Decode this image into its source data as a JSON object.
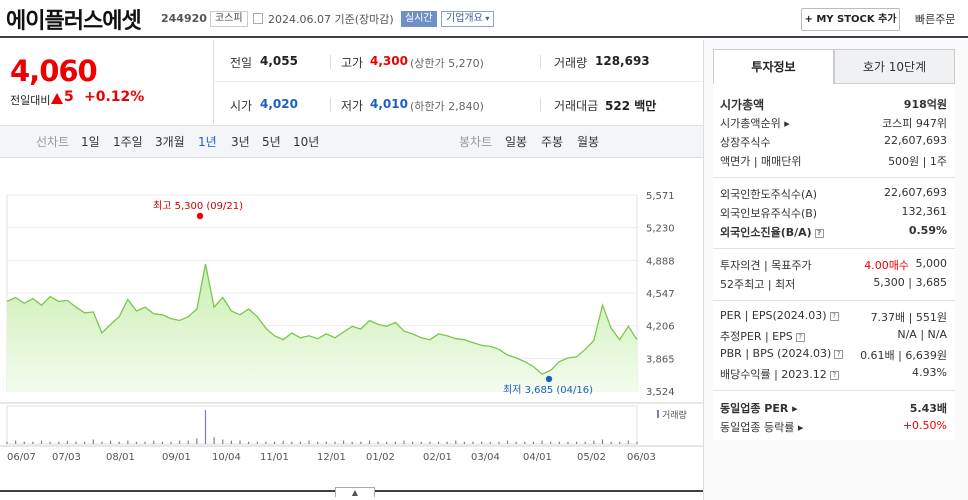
{
  "header": {
    "name": "에이플러스에셋",
    "code": "244920",
    "market": "코스피",
    "date": "2024.06.07",
    "basis": "기준(장마감)",
    "realtime": "실시간",
    "corp_info": "기업개요",
    "my_stock": "+ MY STOCK 추가",
    "quick_order": "빠른주문"
  },
  "price": {
    "current": "4,060",
    "compare_label": "전일대비",
    "change": "5",
    "change_pct": "+0.12%",
    "color_up": "#e00000"
  },
  "stats": {
    "prev_label": "전일",
    "prev": "4,055",
    "high_label": "고가",
    "high": "4,300",
    "upper_limit": "(상한가 5,270)",
    "volume_label": "거래량",
    "volume": "128,693",
    "open_label": "시가",
    "open": "4,020",
    "low_label": "저가",
    "low": "4,010",
    "lower_limit": "(하한가 2,840)",
    "amount_label": "거래대금",
    "amount": "522",
    "amount_unit": "백만"
  },
  "period": {
    "line_label": "선차트",
    "options": [
      "1일",
      "1주일",
      "3개월",
      "1년",
      "3년",
      "5년",
      "10년"
    ],
    "selected": "1년",
    "candle_label": "봉차트",
    "candle_options": [
      "일봉",
      "주봉",
      "월봉"
    ]
  },
  "chart_data": {
    "type": "area",
    "ylim": [
      3524,
      5571
    ],
    "yticks": [
      "5,571",
      "5,230",
      "4,888",
      "4,547",
      "4,206",
      "3,865",
      "3,524"
    ],
    "xticks": [
      "06/07",
      "07/03",
      "08/01",
      "09/01",
      "10/04",
      "11/01",
      "12/01",
      "01/02",
      "02/01",
      "03/04",
      "04/01",
      "05/02",
      "06/03"
    ],
    "series": [
      {
        "values": [
          4460,
          4500,
          4440,
          4490,
          4420,
          4510,
          4460,
          4470,
          4400,
          4340,
          4350,
          4130,
          4220,
          4300,
          4480,
          4360,
          4400,
          4330,
          4320,
          4280,
          4260,
          4300,
          4380,
          4850,
          4400,
          4500,
          4360,
          4320,
          4380,
          4300,
          4180,
          4100,
          4060,
          4130,
          4080,
          4100,
          4070,
          4120,
          4080,
          4140,
          4200,
          4170,
          4260,
          4220,
          4200,
          4240,
          4150,
          4120,
          4080,
          4060,
          4120,
          4100,
          4070,
          4060,
          4030,
          4000,
          3990,
          3960,
          3900,
          3870,
          3830,
          3780,
          3700,
          3740,
          3830,
          3870,
          3880,
          3960,
          4050,
          4420,
          4180,
          4060,
          4200,
          4060
        ]
      }
    ],
    "high_label": "최고 5,300 (09/21)",
    "low_label": "최저 3,685 (04/16)",
    "volume_label": "거래량",
    "volume_bars": [
      2,
      3,
      2,
      2,
      3,
      2,
      2,
      3,
      2,
      2,
      4,
      2,
      3,
      2,
      3,
      2,
      2,
      3,
      2,
      2,
      3,
      3,
      5,
      30,
      6,
      4,
      3,
      3,
      2,
      2,
      2,
      2,
      3,
      2,
      2,
      3,
      2,
      2,
      2,
      3,
      2,
      2,
      3,
      2,
      2,
      2,
      3,
      2,
      2,
      2,
      2,
      2,
      3,
      2,
      2,
      2,
      2,
      2,
      3,
      2,
      2,
      2,
      3,
      2,
      2,
      2,
      2,
      2,
      3,
      4,
      2,
      2,
      3,
      2
    ]
  },
  "right": {
    "tab_invest": "투자정보",
    "tab_quote": "호가 10단계",
    "market_cap_label": "시가총액",
    "market_cap": "918억원",
    "cap_rank_label": "시가총액순위",
    "cap_rank": "코스피  947위",
    "shares_label": "상장주식수",
    "shares": "22,607,693",
    "par_label": "액면가 | 매매단위",
    "par": "500원 | 1주",
    "foreign_limit_label": "외국인한도주식수(A)",
    "foreign_limit": "22,607,693",
    "foreign_hold_label": "외국인보유주식수(B)",
    "foreign_hold": "132,361",
    "foreign_ratio_label": "외국인소진율(B/A)",
    "foreign_ratio": "0.59%",
    "opinion_label": "투자의견 | 목표주가",
    "opinion": "4.00매수",
    "target": "5,000",
    "w52_label": "52주최고 | 최저",
    "w52": "5,300 | 3,685",
    "per_label": "PER | EPS(2024.03)",
    "per": "7.37배 | 551원",
    "est_per_label": "추정PER | EPS",
    "est_per": "N/A | N/A",
    "pbr_label": "PBR | BPS (2024.03)",
    "pbr": "0.61배 | 6,639원",
    "div_label": "배당수익률 | 2023.12",
    "div": "4.93%",
    "ind_per_label": "동일업종 PER",
    "ind_per": "5.43배",
    "ind_rate_label": "동일업종 등락률",
    "ind_rate": "+0.50%"
  }
}
